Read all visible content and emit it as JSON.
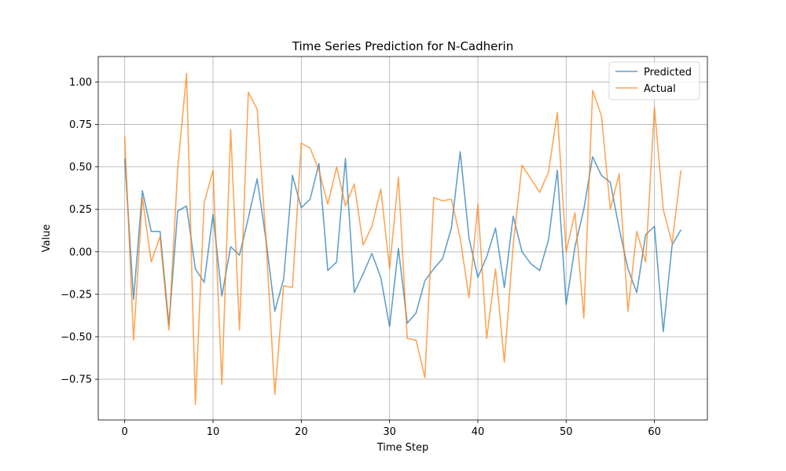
{
  "chart_data": {
    "type": "line",
    "title": "Time Series Prediction for N-Cadherin",
    "xlabel": "Time Step",
    "ylabel": "Value",
    "xlim": [
      -3,
      66
    ],
    "ylim": [
      -0.99,
      1.15
    ],
    "xticks": [
      0,
      10,
      20,
      30,
      40,
      50,
      60
    ],
    "yticks": [
      -0.75,
      -0.5,
      -0.25,
      0.0,
      0.25,
      0.5,
      0.75,
      1.0
    ],
    "ytick_labels": [
      "−0.75",
      "−0.50",
      "−0.25",
      "0.00",
      "0.25",
      "0.50",
      "0.75",
      "1.00"
    ],
    "grid": true,
    "legend_position": "top-right",
    "series": [
      {
        "name": "Predicted",
        "color": "#1f77b4",
        "values": [
          0.55,
          -0.28,
          0.36,
          0.12,
          0.12,
          -0.43,
          0.24,
          0.27,
          -0.1,
          -0.18,
          0.22,
          -0.26,
          0.03,
          -0.02,
          0.2,
          0.43,
          0.07,
          -0.35,
          -0.16,
          0.45,
          0.26,
          0.31,
          0.52,
          -0.11,
          -0.06,
          0.55,
          -0.24,
          -0.13,
          -0.01,
          -0.15,
          -0.44,
          0.02,
          -0.42,
          -0.36,
          -0.17,
          -0.1,
          -0.04,
          0.14,
          0.59,
          0.08,
          -0.15,
          -0.03,
          0.14,
          -0.21,
          0.21,
          0.0,
          -0.07,
          -0.11,
          0.07,
          0.48,
          -0.31,
          0.03,
          0.25,
          0.56,
          0.45,
          0.41,
          0.14,
          -0.1,
          -0.24,
          0.1,
          0.15,
          -0.47,
          0.04,
          0.13
        ]
      },
      {
        "name": "Actual",
        "color": "#ff7f0e",
        "values": [
          0.68,
          -0.52,
          0.32,
          -0.06,
          0.09,
          -0.46,
          0.49,
          1.05,
          -0.9,
          0.29,
          0.48,
          -0.78,
          0.72,
          -0.46,
          0.94,
          0.84,
          0.07,
          -0.84,
          -0.2,
          -0.21,
          0.64,
          0.61,
          0.48,
          0.28,
          0.5,
          0.27,
          0.4,
          0.04,
          0.15,
          0.37,
          -0.1,
          0.44,
          -0.51,
          -0.52,
          -0.74,
          0.32,
          0.3,
          0.31,
          0.08,
          -0.27,
          0.28,
          -0.51,
          -0.1,
          -0.65,
          0.04,
          0.51,
          0.43,
          0.35,
          0.47,
          0.82,
          0.0,
          0.23,
          -0.39,
          0.95,
          0.8,
          0.25,
          0.46,
          -0.35,
          0.12,
          -0.06,
          0.85,
          0.25,
          0.05,
          0.48
        ]
      }
    ]
  }
}
